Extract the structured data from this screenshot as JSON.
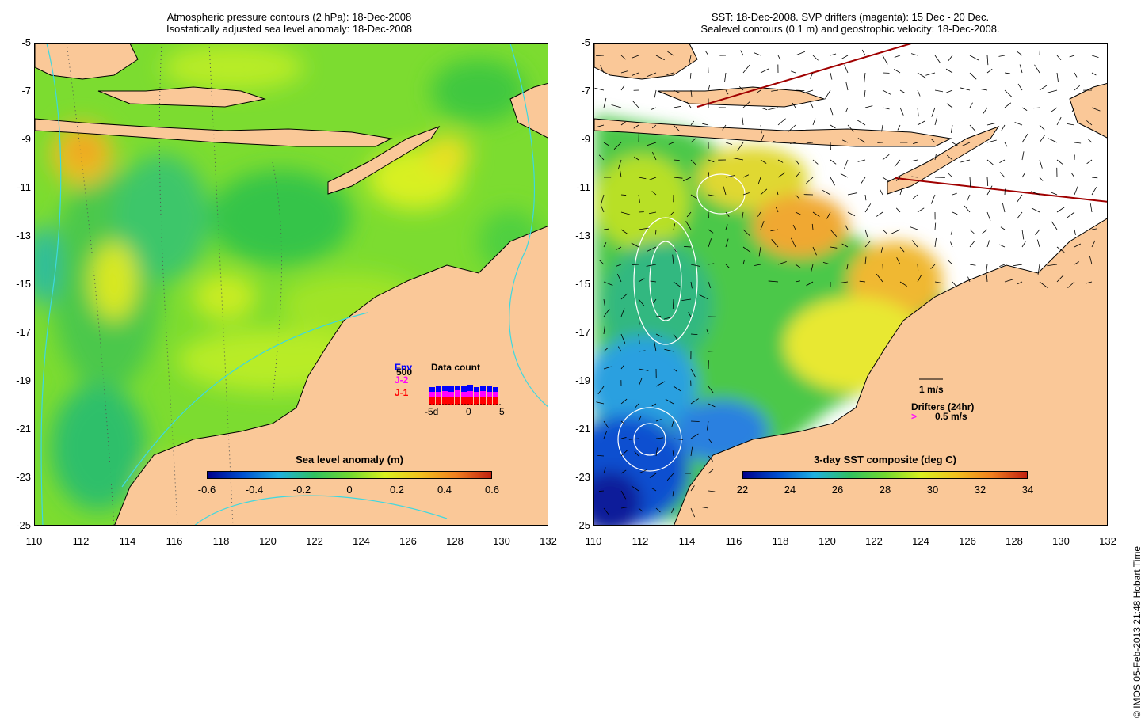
{
  "left_panel": {
    "title_line1": "Atmospheric pressure contours (2 hPa): 18-Dec-2008",
    "title_line2": "Isostatically adjusted sea level anomaly: 18-Dec-2008",
    "colorbar": {
      "label": "Sea level anomaly (m)",
      "ticks": [
        "-0.6",
        "-0.4",
        "-0.2",
        "0",
        "0.2",
        "0.4",
        "0.6"
      ]
    },
    "data_count": {
      "title": "Data count",
      "satellites": [
        {
          "label": "Env",
          "color": "#0000ff"
        },
        {
          "label": "J-2",
          "color": "#ff00ff"
        },
        {
          "label": "J-1",
          "color": "#ff0000"
        }
      ],
      "scale_label": "500",
      "axis_labels": [
        "-5d",
        "0",
        "5"
      ]
    }
  },
  "right_panel": {
    "title_line1": "SST: 18-Dec-2008. SVP drifters (magenta): 15 Dec - 20 Dec.",
    "title_line2": "Sealevel contours (0.1 m) and geostrophic velocity: 18-Dec-2008.",
    "colorbar": {
      "label": "3-day SST composite (deg C)",
      "ticks": [
        "22",
        "24",
        "26",
        "28",
        "30",
        "32",
        "34"
      ]
    },
    "velocity_legend": "1 m/s",
    "drifter_legend_title": "Drifters (24hr)",
    "drifter_legend_value": "0.5 m/s"
  },
  "axes": {
    "x_ticks": [
      "110",
      "112",
      "114",
      "116",
      "118",
      "120",
      "122",
      "124",
      "126",
      "128",
      "130",
      "132"
    ],
    "y_ticks": [
      "-5",
      "-7",
      "-9",
      "-11",
      "-13",
      "-15",
      "-17",
      "-19",
      "-21",
      "-23",
      "-25"
    ],
    "lon_range": [
      110,
      132
    ],
    "lat_range": [
      -25,
      -5
    ]
  },
  "credit": "© IMOS 05-Feb-2013 21:48 Hobart Time",
  "colors": {
    "land": "#fac898",
    "ocean_green": "#5fd63a",
    "ocean_yellowgreen": "#b8ec28",
    "contour_cyan": "#3ed8e0"
  }
}
